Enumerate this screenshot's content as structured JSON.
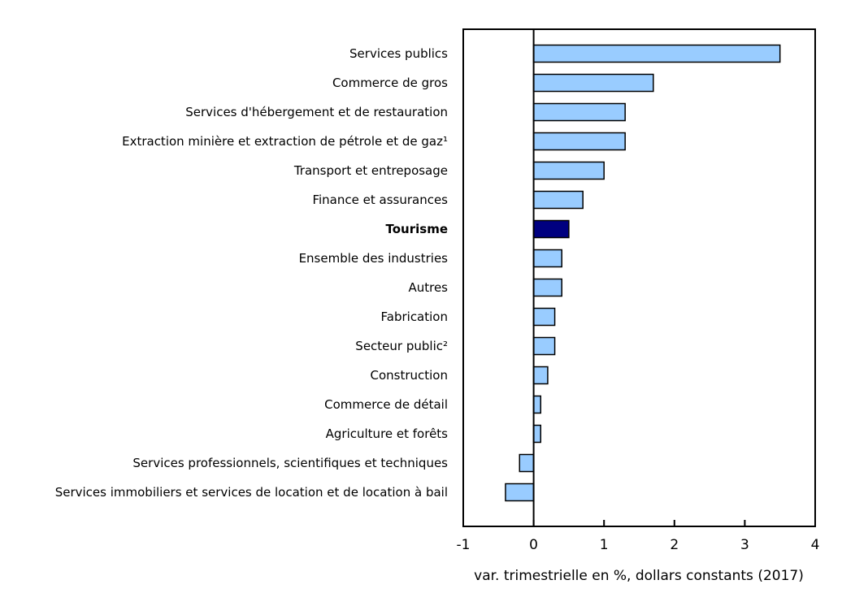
{
  "chart_data": {
    "type": "bar",
    "orientation": "horizontal",
    "categories": [
      "Services publics",
      "Commerce de gros",
      "Services d'hébergement et de restauration",
      "Extraction minière et extraction de pétrole et de gaz¹",
      "Transport et entreposage",
      "Finance et assurances",
      "Tourisme",
      "Ensemble des industries",
      "Autres",
      "Fabrication",
      "Secteur public²",
      "Construction",
      "Commerce de détail",
      "Agriculture et forêts",
      "Services professionnels, scientifiques et techniques",
      "Services immobiliers et services de location et de location à bail"
    ],
    "values": [
      3.5,
      1.7,
      1.3,
      1.3,
      1.0,
      0.7,
      0.5,
      0.4,
      0.4,
      0.3,
      0.3,
      0.2,
      0.1,
      0.1,
      -0.2,
      -0.4
    ],
    "highlight_category": "Tourisme",
    "xlabel": "var. trimestrielle en %, dollars constants (2017)",
    "ylabel": "",
    "title": "",
    "xlim": [
      -1,
      4
    ],
    "xticks": [
      "-1",
      "0",
      "1",
      "2",
      "3",
      "4"
    ],
    "grid": false,
    "colors": {
      "bar": "#99ccff",
      "highlight": "#000080",
      "outline": "#000000"
    }
  }
}
